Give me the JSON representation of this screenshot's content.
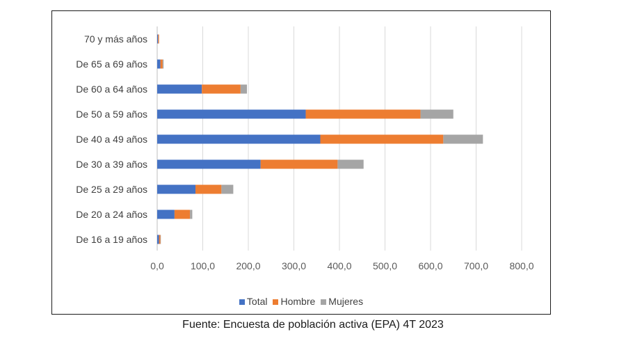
{
  "chart_data": {
    "type": "bar",
    "orientation": "horizontal",
    "stacked": true,
    "categories": [
      "De 16 a 19 años",
      "De 20 a 24 años",
      "De 25 a 29 años",
      "De 30 a 39 años",
      "De 40 a 49 años",
      "De 50 a 59 años",
      "De 60 a 64 años",
      "De 65 a 69 años",
      "70 y más años"
    ],
    "series": [
      {
        "name": "Total",
        "color": "#4472C4",
        "values": [
          4,
          38,
          84,
          227,
          358,
          326,
          98,
          7,
          2
        ]
      },
      {
        "name": "Hombre",
        "color": "#ED7D31",
        "values": [
          3,
          34,
          57,
          169,
          270,
          252,
          85,
          5,
          2
        ]
      },
      {
        "name": "Mujeres",
        "color": "#A5A5A5",
        "values": [
          1,
          5,
          26,
          57,
          87,
          72,
          14,
          2,
          0
        ]
      }
    ],
    "xlim": [
      0,
      800
    ],
    "xticks": [
      "0,0",
      "100,0",
      "200,0",
      "300,0",
      "400,0",
      "500,0",
      "600,0",
      "700,0",
      "800,0"
    ],
    "grid": true,
    "legend_position": "bottom"
  },
  "caption": "Fuente: Encuesta de población activa (EPA) 4T 2023"
}
